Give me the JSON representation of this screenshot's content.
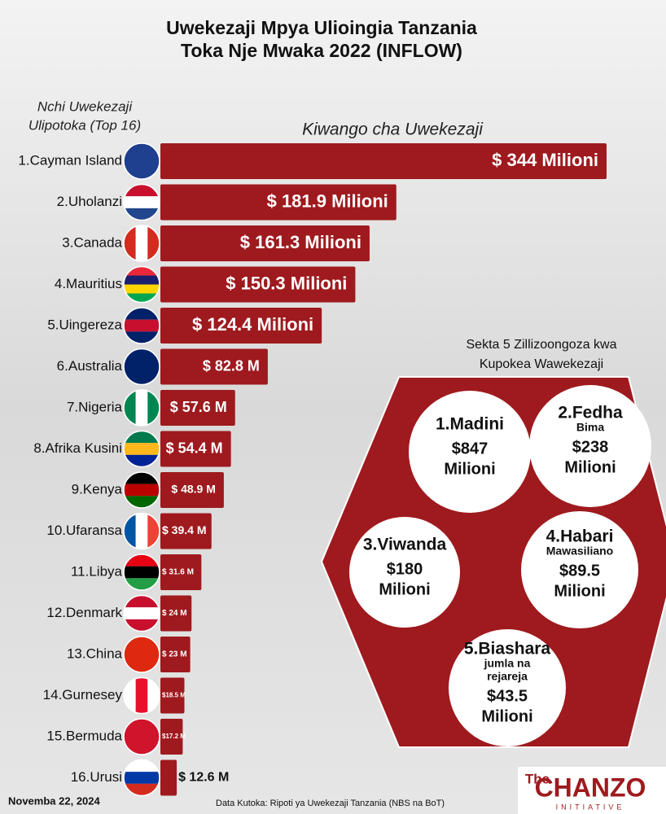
{
  "chart_data": {
    "type": "bar",
    "title": [
      "Uwekezaji Mpya Ulioingia Tanzania",
      "Toka Nje Mwaka 2022 (INFLOW)"
    ],
    "category_label": [
      "Nchi Uwekezaji",
      "Ulipotoka (Top 16)"
    ],
    "subtitle": "Kiwango cha Uwekezaji",
    "color": "#9e1a1e",
    "categories": [
      "1.Cayman Island",
      "2.Uholanzi",
      "3.Canada",
      "4.Mauritius",
      "5.Uingereza",
      "6.Australia",
      "7.Nigeria",
      "8.Afrika Kusini",
      "9.Kenya",
      "10.Ufaransa",
      "11.Libya",
      "12.Denmark",
      "13.China",
      "14.Gurnesey",
      "15.Bermuda",
      "16.Urusi"
    ],
    "values": [
      344,
      181.9,
      161.3,
      150.3,
      124.4,
      82.8,
      57.6,
      54.4,
      48.9,
      39.4,
      31.6,
      24,
      23,
      18.5,
      17.2,
      12.6
    ],
    "value_labels": [
      "$ 344 Milioni",
      "$ 181.9 Milioni",
      "$ 161.3 Milioni",
      "$ 150.3 Milioni",
      "$ 124.4 Milioni",
      "$ 82.8 M",
      "$ 57.6 M",
      "$ 54.4 M",
      "$ 48.9 M",
      "$ 39.4 M",
      "$ 31.6 M",
      "$ 24 M",
      "$ 23 M",
      "$18.5 M",
      "$17.2 M",
      "$ 12.6 M"
    ]
  },
  "sectors": {
    "title": [
      "Sekta 5 Zillizoongoza kwa",
      "Kupokea  Wawekezaji"
    ],
    "items": [
      {
        "name": "1.Madini",
        "amount": "$847",
        "unit": "Milioni"
      },
      {
        "name": "2.Fedha",
        "sub": [
          "Bima"
        ],
        "amount": "$238",
        "unit": "Milioni"
      },
      {
        "name": "3.Viwanda",
        "amount": "$180",
        "unit": "Milioni"
      },
      {
        "name": "4.Habari",
        "sub": [
          "Mawasiliano"
        ],
        "amount": "$89.5",
        "unit": "Milioni"
      },
      {
        "name": "5.Biashara",
        "sub": [
          "jumla na",
          "rejareja"
        ],
        "amount": "$43.5",
        "unit": "Milioni"
      }
    ]
  },
  "footer": {
    "date": "Novemba 22, 2024",
    "source": "Data Kutoka: Ripoti ya Uwekezaji Tanzania  (NBS na BoT)",
    "logo": [
      "The",
      "CHANZO",
      "INITIATIVE"
    ]
  }
}
